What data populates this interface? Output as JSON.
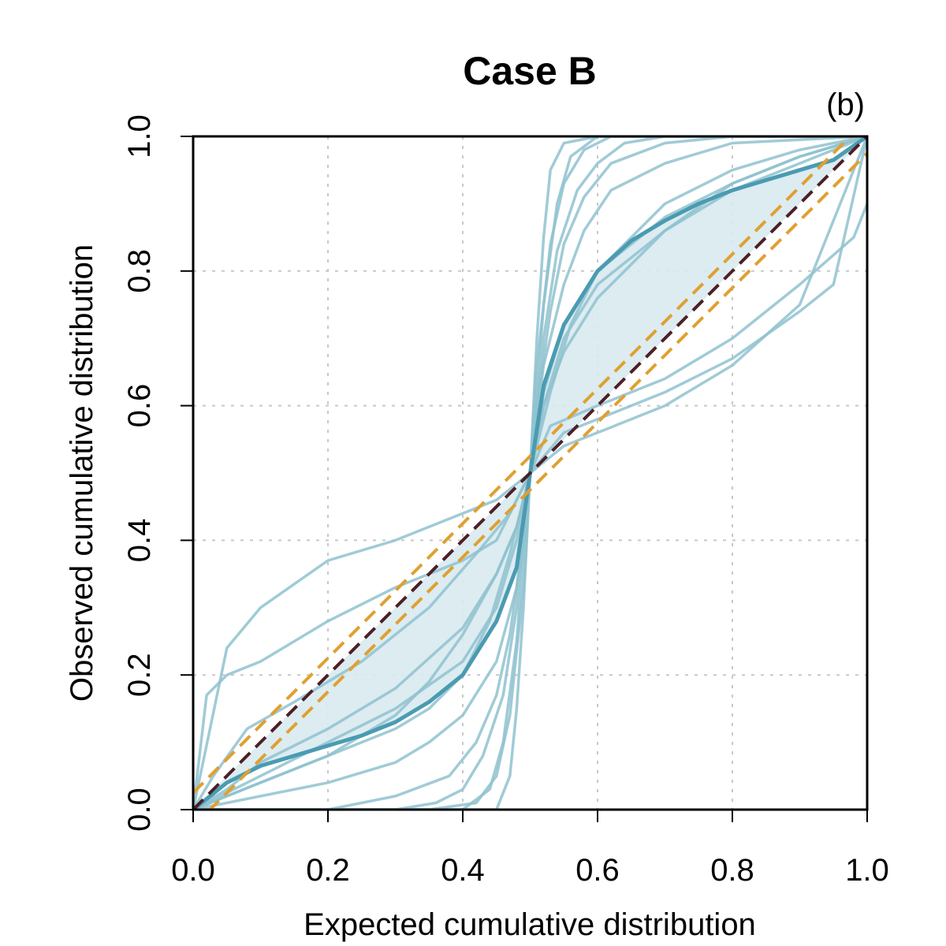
{
  "chart_data": {
    "type": "line",
    "title": "Case B",
    "panel_label": "(b)",
    "xlabel": "Expected cumulative distribution",
    "ylabel": "Observed cumulative distribution",
    "xlim": [
      0,
      1
    ],
    "ylim": [
      0,
      1
    ],
    "x_ticks": [
      "0.0",
      "0.2",
      "0.4",
      "0.6",
      "0.8",
      "1.0"
    ],
    "y_ticks": [
      "0.0",
      "0.2",
      "0.4",
      "0.6",
      "0.8",
      "1.0"
    ],
    "grid": true,
    "legend": "none",
    "colors": {
      "replicates": "#8fc2cf",
      "mean": "#4a9bb2",
      "band": "#d8eaf0",
      "identity": "#4d1f25",
      "bounds": "#e0a030"
    },
    "identity_line": {
      "x": [
        0,
        1
      ],
      "y": [
        0,
        1
      ]
    },
    "bounds_lines": [
      {
        "x": [
          0,
          1
        ],
        "y": [
          0.025,
          1.025
        ]
      },
      {
        "x": [
          0,
          1
        ],
        "y": [
          -0.025,
          0.975
        ]
      }
    ],
    "mean_curve": {
      "x": [
        0,
        0.05,
        0.1,
        0.15,
        0.2,
        0.25,
        0.3,
        0.35,
        0.4,
        0.45,
        0.48,
        0.5,
        0.52,
        0.55,
        0.6,
        0.65,
        0.7,
        0.75,
        0.8,
        0.85,
        0.9,
        0.95,
        1.0
      ],
      "y": [
        0,
        0.04,
        0.065,
        0.08,
        0.095,
        0.11,
        0.13,
        0.16,
        0.2,
        0.28,
        0.36,
        0.5,
        0.63,
        0.72,
        0.8,
        0.845,
        0.875,
        0.9,
        0.92,
        0.935,
        0.95,
        0.965,
        1.0
      ]
    },
    "band": {
      "x": [
        0,
        0.05,
        0.1,
        0.15,
        0.2,
        0.25,
        0.3,
        0.35,
        0.4,
        0.45,
        0.48,
        0.5,
        0.52,
        0.55,
        0.6,
        0.65,
        0.7,
        0.75,
        0.8,
        0.85,
        0.9,
        0.95,
        1.0
      ],
      "lower": [
        0,
        0.04,
        0.065,
        0.08,
        0.095,
        0.11,
        0.13,
        0.16,
        0.2,
        0.28,
        0.36,
        0.5,
        0.52,
        0.55,
        0.6,
        0.65,
        0.7,
        0.75,
        0.8,
        0.85,
        0.9,
        0.95,
        1.0
      ],
      "upper": [
        0,
        0.05,
        0.1,
        0.15,
        0.2,
        0.25,
        0.3,
        0.35,
        0.4,
        0.45,
        0.48,
        0.5,
        0.63,
        0.72,
        0.8,
        0.845,
        0.875,
        0.9,
        0.92,
        0.935,
        0.95,
        0.965,
        1.0
      ]
    },
    "series": [
      {
        "x": [
          0,
          0.05,
          0.1,
          0.2,
          0.3,
          0.4,
          0.45,
          0.5,
          0.55,
          0.6,
          0.7,
          0.8,
          0.9,
          1.0
        ],
        "y": [
          0,
          0.24,
          0.3,
          0.37,
          0.4,
          0.44,
          0.46,
          0.5,
          0.54,
          0.56,
          0.6,
          0.66,
          0.75,
          1.0
        ]
      },
      {
        "x": [
          0,
          0.02,
          0.05,
          0.1,
          0.2,
          0.3,
          0.4,
          0.45,
          0.5,
          0.55,
          0.6,
          0.7,
          0.8,
          0.9,
          0.95,
          1.0
        ],
        "y": [
          0,
          0.17,
          0.2,
          0.22,
          0.28,
          0.33,
          0.37,
          0.4,
          0.5,
          0.56,
          0.58,
          0.62,
          0.67,
          0.74,
          0.78,
          1.0
        ]
      },
      {
        "x": [
          0,
          0.03,
          0.08,
          0.15,
          0.25,
          0.35,
          0.42,
          0.47,
          0.5,
          0.53,
          0.6,
          0.7,
          0.8,
          0.9,
          0.98,
          1.0
        ],
        "y": [
          0,
          0.05,
          0.12,
          0.16,
          0.22,
          0.3,
          0.38,
          0.44,
          0.5,
          0.57,
          0.6,
          0.64,
          0.7,
          0.78,
          0.85,
          0.9
        ]
      },
      {
        "x": [
          0,
          0.05,
          0.1,
          0.2,
          0.3,
          0.4,
          0.45,
          0.48,
          0.5,
          0.52,
          0.55,
          0.6,
          0.7,
          0.8,
          0.9,
          1.0
        ],
        "y": [
          0,
          0.03,
          0.07,
          0.12,
          0.18,
          0.27,
          0.35,
          0.42,
          0.5,
          0.6,
          0.68,
          0.76,
          0.86,
          0.93,
          0.97,
          1.0
        ]
      },
      {
        "x": [
          0,
          0.05,
          0.1,
          0.2,
          0.3,
          0.35,
          0.4,
          0.45,
          0.48,
          0.5,
          0.52,
          0.55,
          0.6,
          0.7,
          0.8,
          0.9,
          1.0
        ],
        "y": [
          0,
          0.02,
          0.04,
          0.08,
          0.14,
          0.19,
          0.26,
          0.35,
          0.42,
          0.5,
          0.6,
          0.7,
          0.78,
          0.86,
          0.92,
          0.96,
          1.0
        ]
      },
      {
        "x": [
          0,
          0.1,
          0.2,
          0.3,
          0.4,
          0.45,
          0.48,
          0.5,
          0.52,
          0.55,
          0.6,
          0.7,
          0.8,
          0.9,
          1.0
        ],
        "y": [
          0,
          0.05,
          0.1,
          0.15,
          0.22,
          0.3,
          0.4,
          0.5,
          0.62,
          0.72,
          0.8,
          0.88,
          0.93,
          0.97,
          1.0
        ]
      },
      {
        "x": [
          0,
          0.1,
          0.2,
          0.3,
          0.35,
          0.4,
          0.44,
          0.47,
          0.5,
          0.53,
          0.56,
          0.6,
          0.65,
          0.7,
          0.8,
          0.9,
          1.0
        ],
        "y": [
          0,
          0.04,
          0.08,
          0.12,
          0.15,
          0.2,
          0.28,
          0.38,
          0.5,
          0.62,
          0.72,
          0.8,
          0.85,
          0.9,
          0.95,
          0.98,
          1.0
        ]
      },
      {
        "x": [
          0,
          0.1,
          0.2,
          0.3,
          0.35,
          0.4,
          0.45,
          0.48,
          0.5,
          0.52,
          0.55,
          0.58,
          0.62,
          0.7,
          0.8,
          1.0
        ],
        "y": [
          0,
          0.02,
          0.04,
          0.07,
          0.1,
          0.14,
          0.22,
          0.33,
          0.5,
          0.66,
          0.78,
          0.86,
          0.92,
          0.96,
          0.99,
          1.0
        ]
      },
      {
        "x": [
          0,
          0.2,
          0.3,
          0.38,
          0.42,
          0.45,
          0.47,
          0.49,
          0.5,
          0.51,
          0.53,
          0.55,
          0.58,
          0.62,
          0.7,
          0.8,
          1.0
        ],
        "y": [
          0,
          0,
          0.02,
          0.05,
          0.1,
          0.17,
          0.26,
          0.4,
          0.5,
          0.6,
          0.74,
          0.84,
          0.91,
          0.96,
          0.99,
          1.0,
          1.0
        ]
      },
      {
        "x": [
          0,
          0.3,
          0.36,
          0.4,
          0.43,
          0.46,
          0.48,
          0.5,
          0.52,
          0.54,
          0.57,
          0.6,
          0.64,
          0.7,
          0.8,
          1.0
        ],
        "y": [
          0,
          0,
          0.01,
          0.03,
          0.08,
          0.17,
          0.3,
          0.5,
          0.7,
          0.83,
          0.92,
          0.96,
          0.99,
          1.0,
          1.0,
          1.0
        ]
      },
      {
        "x": [
          0,
          0.4,
          0.44,
          0.46,
          0.48,
          0.49,
          0.5,
          0.51,
          0.52,
          0.54,
          0.56,
          0.6,
          1.0
        ],
        "y": [
          0,
          0,
          0.03,
          0.1,
          0.25,
          0.38,
          0.5,
          0.62,
          0.75,
          0.9,
          0.97,
          1.0,
          1.0
        ]
      },
      {
        "x": [
          0,
          0.35,
          0.42,
          0.45,
          0.47,
          0.49,
          0.5,
          0.51,
          0.53,
          0.55,
          0.58,
          0.62,
          0.7,
          1.0
        ],
        "y": [
          0,
          0,
          0.01,
          0.05,
          0.14,
          0.33,
          0.5,
          0.66,
          0.84,
          0.93,
          0.98,
          1.0,
          1.0,
          1.0
        ]
      },
      {
        "x": [
          0,
          0.45,
          0.47,
          0.48,
          0.49,
          0.5,
          0.51,
          0.52,
          0.53,
          0.55,
          0.6,
          1.0
        ],
        "y": [
          0,
          0,
          0.05,
          0.15,
          0.3,
          0.5,
          0.7,
          0.85,
          0.95,
          0.99,
          1.0,
          1.0
        ]
      }
    ]
  }
}
